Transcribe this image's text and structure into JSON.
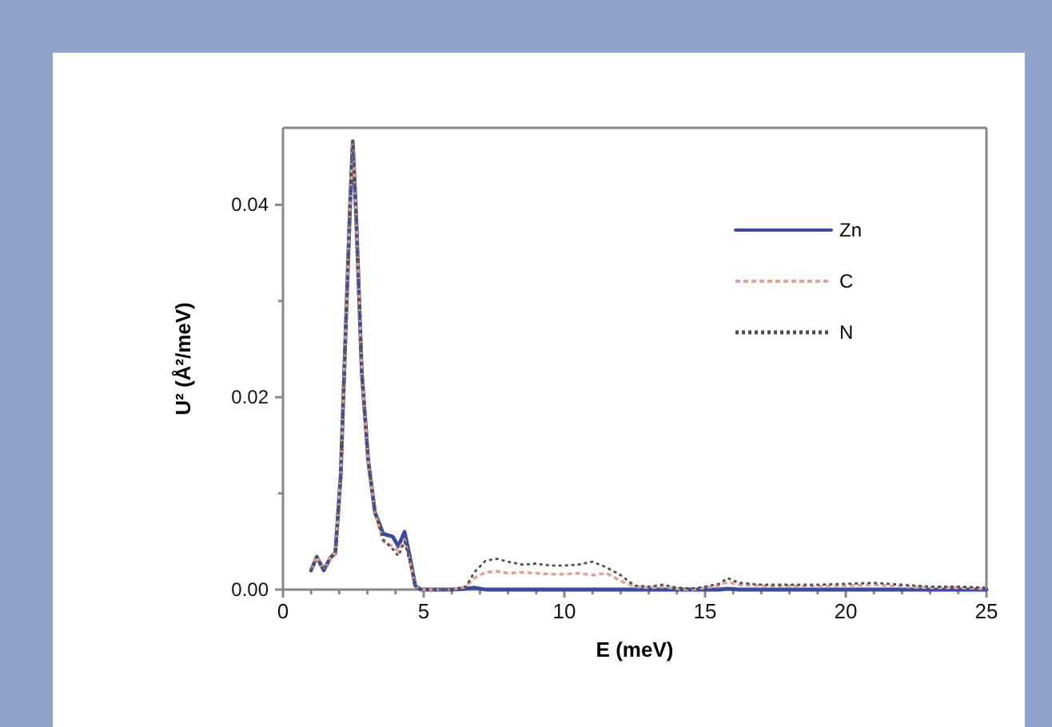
{
  "chart_data": {
    "type": "line",
    "xlabel": "E (meV)",
    "ylabel": "U² (Å²/meV)",
    "xlim": [
      0,
      25
    ],
    "xticks": [
      0,
      {
        "value": 1,
        "label": null
      },
      {
        "value": 2,
        "label": null
      },
      {
        "value": 3,
        "label": null
      },
      {
        "value": 4,
        "label": null
      },
      5,
      {
        "value": 6,
        "label": null
      },
      {
        "value": 7,
        "label": null
      },
      {
        "value": 8,
        "label": null
      },
      {
        "value": 9,
        "label": null
      },
      10,
      {
        "value": 11,
        "label": null
      },
      {
        "value": 12,
        "label": null
      },
      {
        "value": 13,
        "label": null
      },
      {
        "value": 14,
        "label": null
      },
      15,
      {
        "value": 16,
        "label": null
      },
      {
        "value": 17,
        "label": null
      },
      {
        "value": 18,
        "label": null
      },
      {
        "value": 19,
        "label": null
      },
      20,
      {
        "value": 21,
        "label": null
      },
      {
        "value": 22,
        "label": null
      },
      {
        "value": 23,
        "label": null
      },
      {
        "value": 24,
        "label": null
      },
      25
    ],
    "ylim": [
      0,
      0.048
    ],
    "yticks": [
      {
        "value": 0,
        "label": "0.00"
      },
      {
        "value": 0.01,
        "label": null
      },
      {
        "value": 0.02,
        "label": "0.02"
      },
      {
        "value": 0.03,
        "label": null
      },
      {
        "value": 0.04,
        "label": "0.04"
      }
    ],
    "legend": "top right",
    "grid": false,
    "x": [
      1,
      1.2,
      1.45,
      1.68,
      1.86,
      2.05,
      2.24,
      2.39,
      2.48,
      2.6,
      2.8,
      3.03,
      3.27,
      3.56,
      3.9,
      4.1,
      4.32,
      4.5,
      4.7,
      4.9,
      5.5,
      6,
      6.5,
      6.8,
      7.2,
      7.6,
      8,
      8.5,
      9,
      9.5,
      10,
      10.5,
      11,
      11.5,
      12,
      12.5,
      13,
      13.5,
      14,
      14.5,
      15,
      15.5,
      15.8,
      16.2,
      17,
      18,
      19,
      20,
      21,
      22,
      23,
      24,
      25
    ],
    "series": [
      {
        "name": "Zn",
        "color": "#3b4a9c",
        "line_style": "solid",
        "values": [
          0.002,
          0.0034,
          0.002,
          0.0033,
          0.0038,
          0.0118,
          0.028,
          0.0404,
          0.0466,
          0.0389,
          0.0226,
          0.0134,
          0.008,
          0.0058,
          0.0055,
          0.0045,
          0.006,
          0.0035,
          0.0004,
          0,
          0,
          0,
          0.0001,
          0.0002,
          0,
          0,
          0,
          0,
          0,
          0,
          0,
          0,
          0,
          0,
          0,
          0,
          0,
          0,
          0,
          0,
          0,
          0,
          0.0001,
          0,
          0,
          0,
          0,
          0,
          0,
          0,
          0,
          0,
          0
        ]
      },
      {
        "name": "C",
        "color": "#e0a49a",
        "line_style": "dashed",
        "values": [
          0.002,
          0.0034,
          0.002,
          0.0033,
          0.0038,
          0.0118,
          0.028,
          0.0404,
          0.0466,
          0.0389,
          0.0226,
          0.0134,
          0.008,
          0.005,
          0.0045,
          0.004,
          0.0052,
          0.003,
          0.0004,
          0,
          0,
          0,
          0.0003,
          0.0012,
          0.0018,
          0.0019,
          0.0017,
          0.0018,
          0.0017,
          0.0016,
          0.0016,
          0.0017,
          0.0015,
          0.0017,
          0.0009,
          0.0003,
          0.0002,
          0.0003,
          0.0001,
          0,
          0.0002,
          0.0004,
          0.0008,
          0.0005,
          0.0004,
          0.0004,
          0.0003,
          0.0004,
          0.0005,
          0.0003,
          0.0002,
          0.0002,
          0.0001
        ]
      },
      {
        "name": "N",
        "color": "#505050",
        "line_style": "dotted",
        "values": [
          0.002,
          0.0034,
          0.002,
          0.0033,
          0.0038,
          0.0118,
          0.028,
          0.0404,
          0.0466,
          0.0389,
          0.0226,
          0.0134,
          0.008,
          0.0052,
          0.0042,
          0.0035,
          0.005,
          0.003,
          0.0004,
          0,
          0,
          0,
          0.0003,
          0.0018,
          0.003,
          0.0032,
          0.0029,
          0.0026,
          0.0027,
          0.0025,
          0.0025,
          0.0026,
          0.0029,
          0.0023,
          0.0015,
          0.0004,
          0.0003,
          0.0005,
          0.0002,
          0.0001,
          0.0003,
          0.0006,
          0.0012,
          0.0007,
          0.0005,
          0.0005,
          0.0005,
          0.0006,
          0.0007,
          0.0005,
          0.0003,
          0.0003,
          0.0002
        ]
      }
    ]
  }
}
